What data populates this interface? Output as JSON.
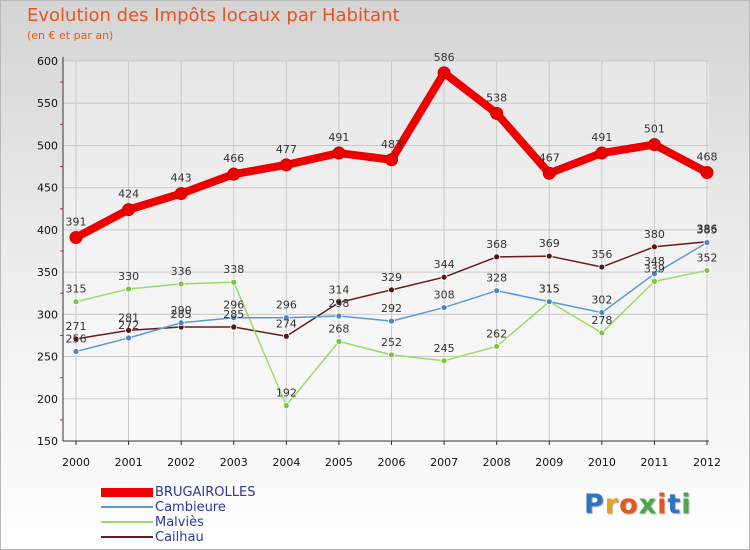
{
  "title": "Evolution des Impôts locaux par Habitant",
  "subtitle": "(en € et par an)",
  "logo": {
    "text": "Proxiti",
    "letter_colors": [
      "#2f74c0",
      "#e8a21a",
      "#e25a1c",
      "#4aa84a",
      "#e8541e",
      "#2f74c0",
      "#4aa84a"
    ]
  },
  "chart_data": {
    "type": "line",
    "title": "Evolution des Impôts locaux par Habitant",
    "subtitle": "(en € et par an)",
    "xlabel": "",
    "ylabel": "",
    "categories": [
      "2000",
      "2001",
      "2002",
      "2003",
      "2004",
      "2005",
      "2006",
      "2007",
      "2008",
      "2009",
      "2010",
      "2011",
      "2012"
    ],
    "ylim": [
      150,
      600
    ],
    "yticks": [
      "150",
      "200",
      "250",
      "300",
      "350",
      "400",
      "450",
      "500",
      "550",
      "600"
    ],
    "grid": true,
    "legend_position": "bottom-left",
    "series": [
      {
        "name": "BRUGAIROLLES",
        "color": "#ee0000",
        "values": [
          391,
          424,
          443,
          466,
          477,
          491,
          483,
          586,
          538,
          467,
          491,
          501,
          468
        ]
      },
      {
        "name": "Cambieure",
        "color": "#5b9bd5",
        "values": [
          256,
          272,
          290,
          296,
          296,
          298,
          292,
          308,
          328,
          315,
          302,
          348,
          385
        ]
      },
      {
        "name": "Malviès",
        "color": "#99dd66",
        "values": [
          315,
          330,
          336,
          338,
          192,
          268,
          252,
          245,
          262,
          315,
          278,
          339,
          352
        ]
      },
      {
        "name": "Cailhau",
        "color": "#6b1a1a",
        "values": [
          271,
          281,
          285,
          285,
          274,
          314,
          329,
          344,
          368,
          369,
          356,
          380,
          386
        ]
      }
    ]
  }
}
